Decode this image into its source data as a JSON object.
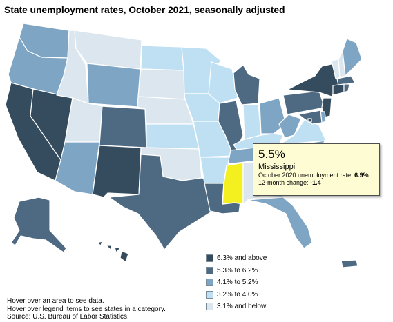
{
  "title": "State unemployment rates, October 2021, seasonally adjusted",
  "colors": {
    "cat1": "#344c5e",
    "cat2": "#4e6a82",
    "cat3": "#7ea5c4",
    "cat4": "#bfdff2",
    "cat5": "#dce6ee",
    "highlight": "#f4f020"
  },
  "legend": [
    {
      "label": "6.3% and above",
      "category": "cat1"
    },
    {
      "label": "5.3% to 6.2%",
      "category": "cat2"
    },
    {
      "label": "4.1% to 5.2%",
      "category": "cat3"
    },
    {
      "label": "3.2% to 4.0%",
      "category": "cat4"
    },
    {
      "label": "3.1% and below",
      "category": "cat5"
    }
  ],
  "tooltip": {
    "value": "5.5%",
    "state": "Mississippi",
    "prior_label": "October 2020 unemployment rate:",
    "prior_value": "6.9%",
    "change_label": "12-month change:",
    "change_value": "-1.4"
  },
  "notes": [
    "Hover over an area to see data.",
    "Hover over legend items to see states in a category.",
    "Source: U.S. Bureau of Labor Statistics."
  ],
  "state_categories": {
    "WA": "cat3",
    "OR": "cat3",
    "CA": "cat1",
    "NV": "cat1",
    "ID": "cat5",
    "MT": "cat5",
    "WY": "cat3",
    "UT": "cat5",
    "AZ": "cat3",
    "NM": "cat1",
    "CO": "cat2",
    "ND": "cat4",
    "SD": "cat5",
    "NE": "cat5",
    "KS": "cat4",
    "OK": "cat5",
    "TX": "cat2",
    "MN": "cat4",
    "IA": "cat4",
    "MO": "cat4",
    "AR": "cat4",
    "LA": "cat2",
    "WI": "cat4",
    "IL": "cat2",
    "MI": "cat2",
    "IN": "cat4",
    "OH": "cat3",
    "KY": "cat4",
    "TN": "cat3",
    "MS": "highlight",
    "AL": "cat5",
    "GA": "cat4",
    "FL": "cat3",
    "SC": "cat4",
    "NC": "cat3",
    "VA": "cat4",
    "WV": "cat3",
    "PA": "cat2",
    "NY": "cat1",
    "VT": "cat5",
    "NH": "cat5",
    "ME": "cat3",
    "MA": "cat2",
    "RI": "cat2",
    "CT": "cat1",
    "NJ": "cat1",
    "DE": "cat3",
    "MD": "cat2",
    "DC": "cat1",
    "AK": "cat2",
    "HI": "cat1",
    "PR": "cat2"
  }
}
